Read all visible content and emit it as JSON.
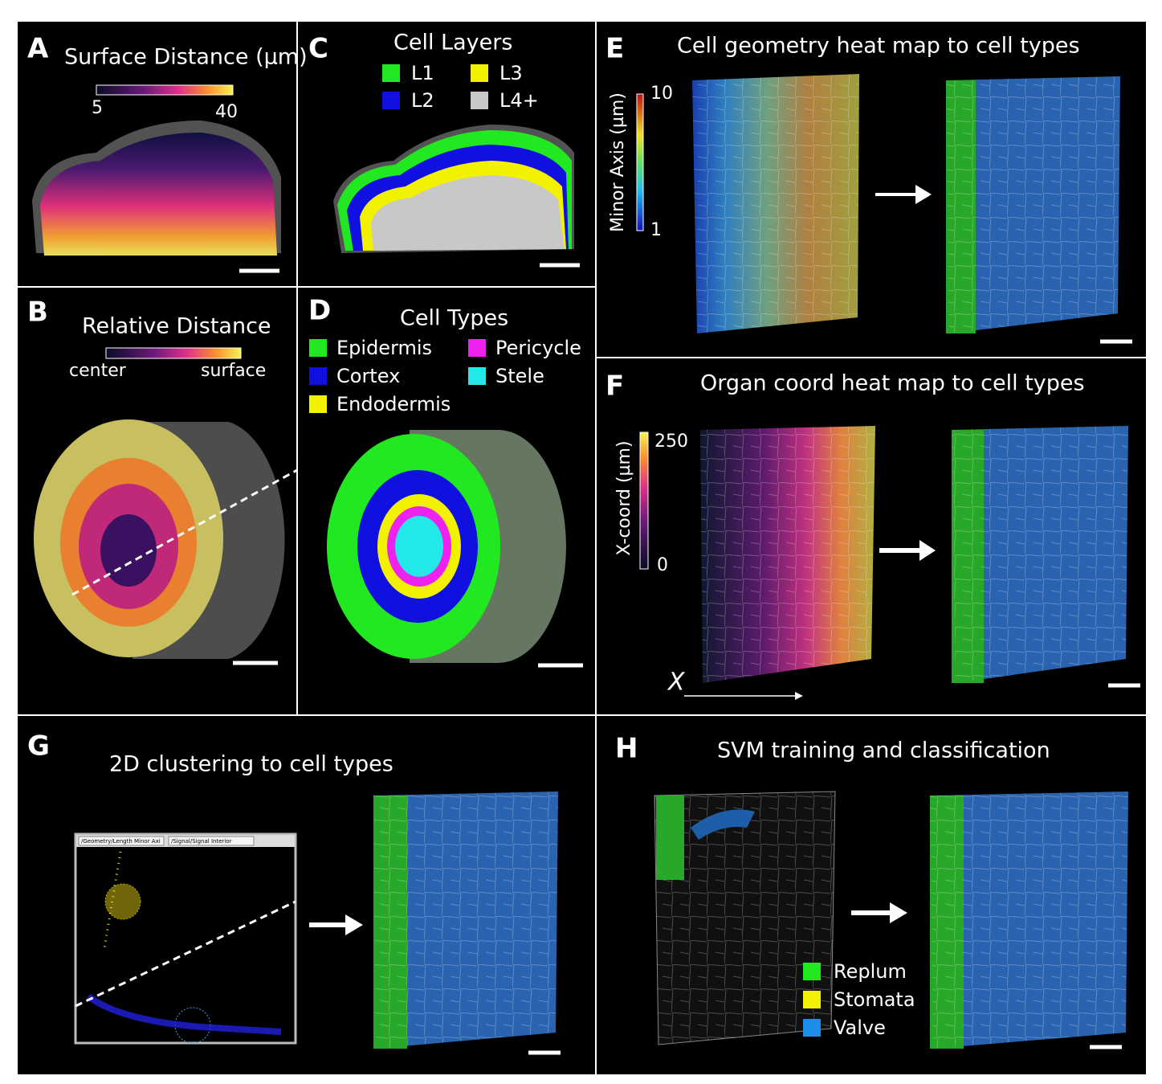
{
  "panels": {
    "A": {
      "label": "A",
      "title": "Surface Distance (µm)",
      "colorbar_min": "5",
      "colorbar_max": "40"
    },
    "B": {
      "label": "B",
      "title": "Relative Distance",
      "colorbar_min": "center",
      "colorbar_max": "surface"
    },
    "C": {
      "label": "C",
      "title": "Cell Layers",
      "legend": [
        {
          "name": "L1",
          "color": "#22e822"
        },
        {
          "name": "L2",
          "color": "#1010e0"
        },
        {
          "name": "L3",
          "color": "#f2f200"
        },
        {
          "name": "L4+",
          "color": "#c8c8c8"
        }
      ]
    },
    "D": {
      "label": "D",
      "title": "Cell Types",
      "legend": [
        {
          "name": "Epidermis",
          "color": "#22e822"
        },
        {
          "name": "Cortex",
          "color": "#1010e0"
        },
        {
          "name": "Endodermis",
          "color": "#f2f200"
        },
        {
          "name": "Pericycle",
          "color": "#ee22ee"
        },
        {
          "name": "Stele",
          "color": "#22e8e8"
        }
      ]
    },
    "E": {
      "label": "E",
      "title": "Cell geometry heat map to cell types",
      "colorbar_title": "Minor Axis (µm)",
      "colorbar_max": "10",
      "colorbar_min": "1"
    },
    "F": {
      "label": "F",
      "title": "Organ coord heat map to cell types",
      "colorbar_title": "X-coord (µm)",
      "colorbar_max": "250",
      "colorbar_min": "0",
      "axis_label": "X"
    },
    "G": {
      "label": "G",
      "title": "2D clustering to cell types",
      "dropdown_x": "/Geometry/Length Minor Axi",
      "dropdown_y": "/Signal/Signal Interior"
    },
    "H": {
      "label": "H",
      "title": "SVM training and classification",
      "legend": [
        {
          "name": "Replum",
          "color": "#22e822"
        },
        {
          "name": "Stomata",
          "color": "#f2f200"
        },
        {
          "name": "Valve",
          "color": "#1e8ce8"
        }
      ]
    }
  }
}
